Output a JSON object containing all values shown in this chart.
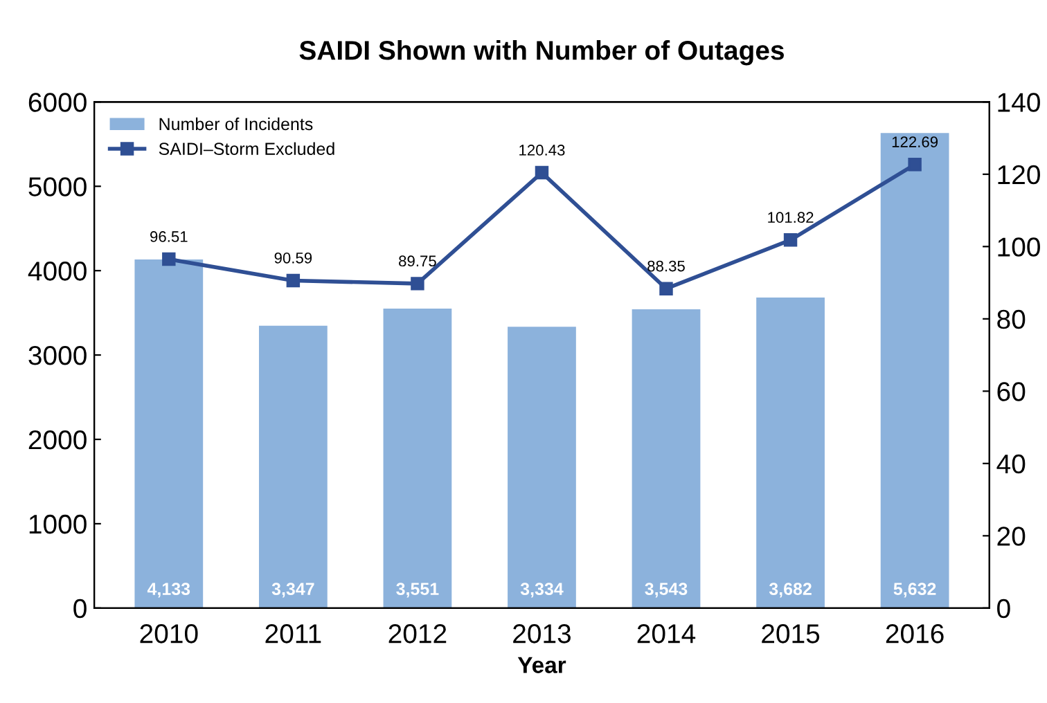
{
  "chart_data": {
    "type": "bar",
    "title": "SAIDI Shown with Number of Outages",
    "xlabel": "Year",
    "categories": [
      "2010",
      "2011",
      "2012",
      "2013",
      "2014",
      "2015",
      "2016"
    ],
    "series": [
      {
        "name": "Number of Incidents",
        "color": "#8cb2dc",
        "values": [
          4133,
          3347,
          3551,
          3334,
          3543,
          3682,
          5632
        ],
        "value_labels": [
          "4,133",
          "3,347",
          "3,551",
          "3,334",
          "3,543",
          "3,682",
          "5,632"
        ]
      },
      {
        "name": "SAIDI–Storm Excluded",
        "type": "line",
        "axis": "y2",
        "color": "#2f4f94",
        "marker": "square",
        "values": [
          96.51,
          90.59,
          89.75,
          120.43,
          88.35,
          101.82,
          122.69
        ],
        "value_labels": [
          "96.51",
          "90.59",
          "89.75",
          "120.43",
          "88.35",
          "101.82",
          "122.69"
        ]
      }
    ],
    "ylim": [
      0,
      6000
    ],
    "yticks": [
      0,
      1000,
      2000,
      3000,
      4000,
      5000,
      6000
    ],
    "y2lim": [
      0,
      140
    ],
    "y2ticks": [
      0,
      20,
      40,
      60,
      80,
      100,
      120,
      140
    ],
    "legend": "top left",
    "grid": false
  }
}
